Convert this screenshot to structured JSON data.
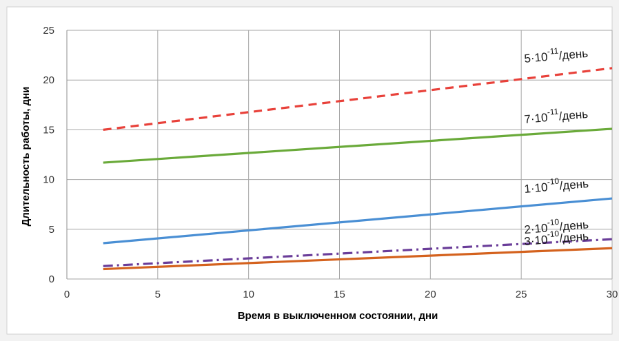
{
  "chart_data": {
    "type": "line",
    "title": "",
    "xlabel": "Время в выключенном состоянии, дни",
    "ylabel": "Длительность работы, дни",
    "xlim": [
      0,
      30
    ],
    "ylim": [
      0,
      25
    ],
    "x_ticks": [
      0,
      5,
      10,
      15,
      20,
      25,
      30
    ],
    "y_ticks": [
      0,
      5,
      10,
      15,
      20,
      25
    ],
    "grid": true,
    "legend": "none",
    "series": [
      {
        "label_base": "5·10",
        "label_exp": "-11",
        "label_suffix": "/день",
        "color": "#e8413a",
        "dash": "dashed",
        "points": [
          [
            2,
            15.0
          ],
          [
            30,
            21.2
          ]
        ]
      },
      {
        "label_base": "7·10",
        "label_exp": "-11",
        "label_suffix": "/день",
        "color": "#6aaa3a",
        "dash": "solid",
        "points": [
          [
            2,
            11.7
          ],
          [
            30,
            15.1
          ]
        ]
      },
      {
        "label_base": "1·10",
        "label_exp": "-10",
        "label_suffix": "/день",
        "color": "#4a8fd4",
        "dash": "solid",
        "points": [
          [
            2,
            3.6
          ],
          [
            30,
            8.1
          ]
        ]
      },
      {
        "label_base": "2·10",
        "label_exp": "-10",
        "label_suffix": "/день",
        "color": "#6a3d99",
        "dash": "dashdot",
        "points": [
          [
            2,
            1.3
          ],
          [
            30,
            4.0
          ]
        ]
      },
      {
        "label_base": "3·10",
        "label_exp": "-10",
        "label_suffix": "/день",
        "color": "#d4621e",
        "dash": "solid",
        "points": [
          [
            2,
            1.0
          ],
          [
            30,
            3.1
          ]
        ]
      }
    ]
  }
}
